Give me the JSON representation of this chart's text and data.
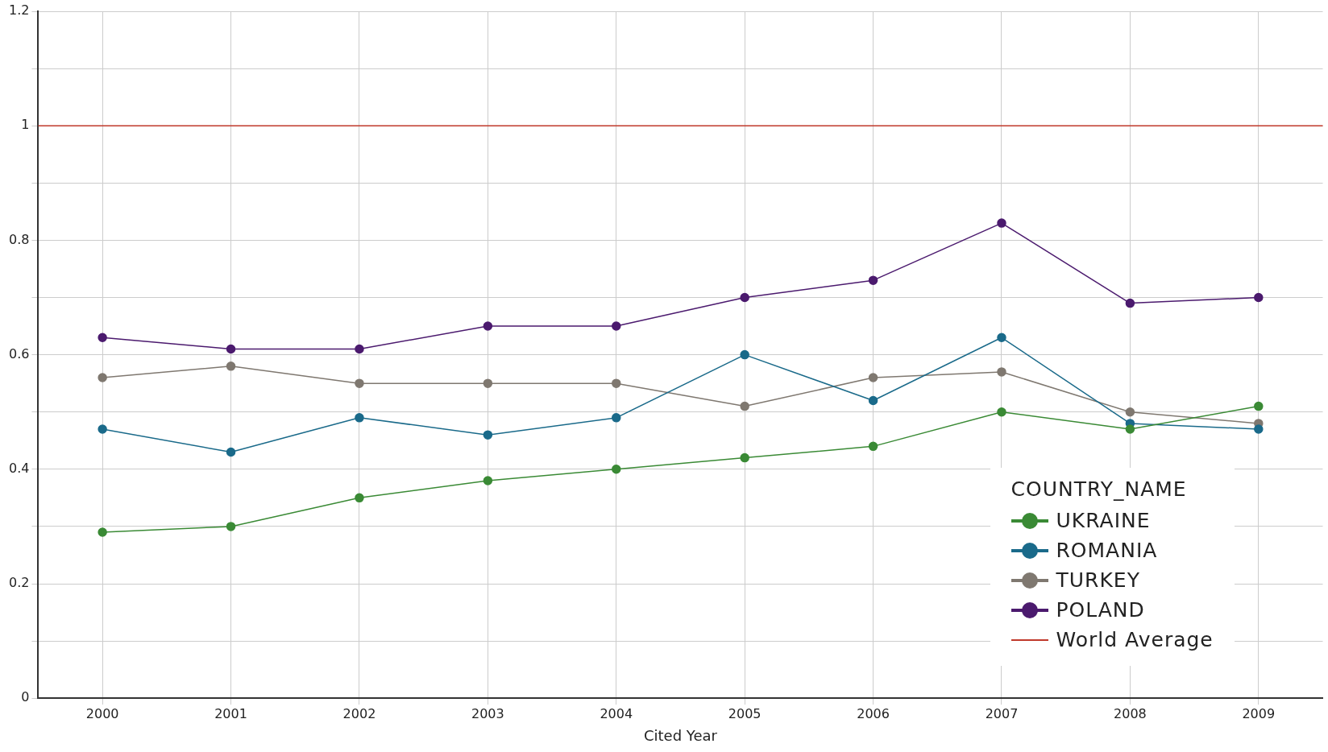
{
  "chart_data": {
    "type": "line",
    "xlabel": "Cited Year",
    "legend_title": "COUNTRY_NAME",
    "legend": "bottom right",
    "grid": true,
    "marker": "circle",
    "line_style": "solid",
    "categories": [
      "2000",
      "2001",
      "2002",
      "2003",
      "2004",
      "2005",
      "2006",
      "2007",
      "2008",
      "2009"
    ],
    "ylim": [
      0,
      1.2
    ],
    "yticks": [
      0,
      {
        "value": 0.1,
        "label": null
      },
      0.2,
      {
        "value": 0.3,
        "label": null
      },
      0.4,
      {
        "value": 0.5,
        "label": null
      },
      0.6,
      {
        "value": 0.7,
        "label": null
      },
      0.8,
      {
        "value": 0.9,
        "label": null
      },
      1,
      {
        "value": 1.1,
        "label": null
      },
      1.2
    ],
    "series": [
      {
        "name": "UKRAINE",
        "color": "#3a8a35",
        "values": [
          0.29,
          0.3,
          0.35,
          0.38,
          0.4,
          0.42,
          0.44,
          0.5,
          0.47,
          0.51
        ]
      },
      {
        "name": "ROMANIA",
        "color": "#1a6a8a",
        "values": [
          0.47,
          0.43,
          0.49,
          0.46,
          0.49,
          0.6,
          0.52,
          0.63,
          0.48,
          0.47
        ]
      },
      {
        "name": "TURKEY",
        "color": "#7f7870",
        "values": [
          0.56,
          0.58,
          0.55,
          0.55,
          0.55,
          0.51,
          0.56,
          0.57,
          0.5,
          0.48
        ]
      },
      {
        "name": "POLAND",
        "color": "#4b1a6e",
        "values": [
          0.63,
          0.61,
          0.61,
          0.65,
          0.65,
          0.7,
          0.73,
          0.83,
          0.69,
          0.7
        ]
      }
    ],
    "ref_lines": [
      {
        "axis": "y",
        "value": 1,
        "label": "World Average",
        "color": "#c0392b",
        "line_style": "solid"
      }
    ]
  }
}
